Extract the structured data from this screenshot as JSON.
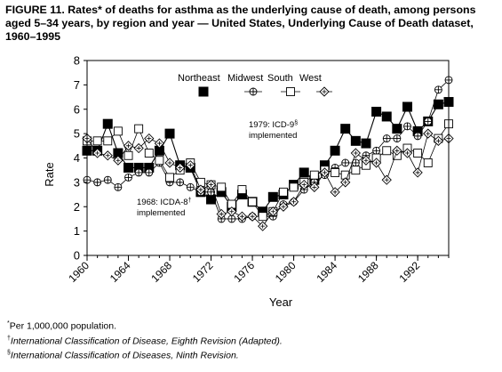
{
  "title": "FIGURE 11. Rates* of deaths for asthma as the underlying cause of death, among persons aged 5–34 years, by region and year — United States, Underlying Cause of Death dataset, 1960–1995",
  "footnotes": {
    "star_mark": "*",
    "star_text": "Per 1,000,000 population.",
    "dagger_mark": "†",
    "dagger_text": "International Classification of Disease, Eighth Revision (Adapted).",
    "section_mark": "§",
    "section_text": "International Classification of Diseases, Ninth Revision."
  },
  "chart_data": {
    "type": "line",
    "xlabel": "Year",
    "ylabel": "Rate",
    "xlim": [
      1960,
      1995
    ],
    "ylim": [
      0,
      8
    ],
    "xticks": [
      1960,
      1964,
      1968,
      1972,
      1976,
      1980,
      1984,
      1988,
      1992
    ],
    "yticks": [
      0,
      1,
      2,
      3,
      4,
      5,
      6,
      7,
      8
    ],
    "legend_position": "top",
    "grid": false,
    "x": [
      1960,
      1961,
      1962,
      1963,
      1964,
      1965,
      1966,
      1967,
      1968,
      1969,
      1970,
      1971,
      1972,
      1973,
      1974,
      1975,
      1976,
      1977,
      1978,
      1979,
      1980,
      1981,
      1982,
      1983,
      1984,
      1985,
      1986,
      1987,
      1988,
      1989,
      1990,
      1991,
      1992,
      1993,
      1994,
      1995
    ],
    "series": [
      {
        "name": "Northeast",
        "marker": "filled-square",
        "values": [
          4.3,
          4.3,
          5.4,
          4.2,
          3.6,
          3.6,
          3.6,
          4.3,
          5.0,
          3.7,
          3.6,
          2.6,
          2.3,
          2.6,
          2.0,
          2.5,
          2.2,
          1.8,
          2.4,
          2.5,
          2.9,
          3.4,
          3.1,
          3.7,
          4.3,
          5.2,
          4.7,
          4.6,
          5.9,
          5.7,
          5.2,
          6.1,
          5.1,
          5.5,
          6.2,
          6.3
        ]
      },
      {
        "name": "Midwest",
        "marker": "circle-plus",
        "values": [
          3.1,
          3.0,
          3.1,
          2.8,
          3.2,
          3.4,
          3.4,
          3.8,
          3.0,
          3.0,
          2.8,
          2.6,
          2.6,
          1.5,
          1.5,
          1.5,
          1.6,
          1.6,
          1.6,
          2.1,
          2.2,
          2.7,
          3.0,
          3.3,
          3.6,
          3.8,
          3.8,
          4.1,
          4.3,
          4.8,
          4.8,
          5.3,
          4.9,
          5.5,
          6.8,
          7.2
        ]
      },
      {
        "name": "South",
        "marker": "open-square",
        "values": [
          4.7,
          4.7,
          4.7,
          5.1,
          4.1,
          5.2,
          4.2,
          3.9,
          3.2,
          3.5,
          3.8,
          3.0,
          2.9,
          2.8,
          2.1,
          2.7,
          2.2,
          1.6,
          1.8,
          2.6,
          2.8,
          3.0,
          3.3,
          3.5,
          3.4,
          3.3,
          3.5,
          3.7,
          4.0,
          4.3,
          4.1,
          4.4,
          4.2,
          3.8,
          4.8,
          5.4
        ]
      },
      {
        "name": "West",
        "marker": "diamond-plus",
        "values": [
          4.8,
          4.2,
          4.1,
          3.9,
          4.5,
          4.4,
          4.8,
          4.6,
          3.8,
          3.6,
          3.7,
          2.7,
          2.9,
          1.7,
          1.8,
          1.6,
          1.6,
          1.2,
          1.8,
          2.0,
          2.2,
          2.9,
          2.8,
          3.4,
          2.6,
          3.0,
          4.2,
          3.9,
          3.8,
          3.1,
          4.3,
          4.2,
          3.4,
          5.0,
          4.7,
          4.8
        ]
      }
    ],
    "annotations": [
      {
        "label": "1968: ICDA-8",
        "mark": "†",
        "line2": "implemented",
        "year": 1968
      },
      {
        "label": "1979: ICD-9",
        "mark": "§",
        "line2": "implemented",
        "year": 1979
      }
    ]
  }
}
